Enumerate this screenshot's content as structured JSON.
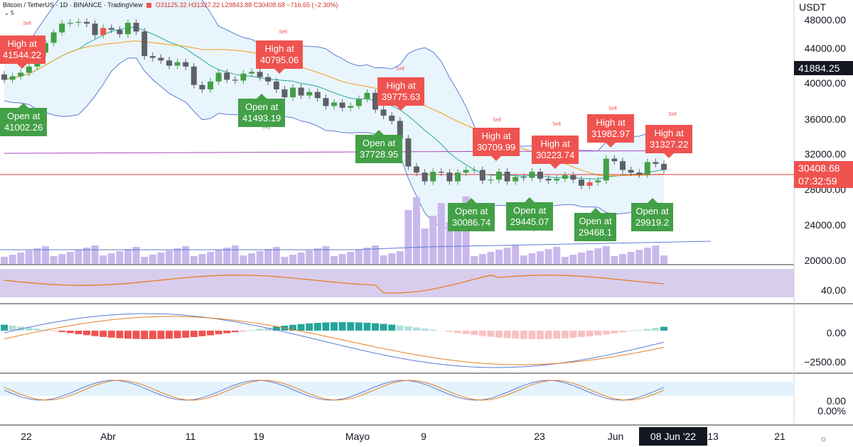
{
  "header": {
    "symbol_line": "Bitcoin / TetherUS · 1D · BINANCE · TradingView",
    "ohlc": "O31125.32 H31327.22 L29843.88 C30408.68 −716.65 (−2.30%)",
    "indicator_line": "5"
  },
  "currency": "USDT",
  "y_axis": [
    "48000.00",
    "44000.00",
    "40000.00",
    "36000.00",
    "32000.00",
    "28000.00",
    "24000.00",
    "20000.00"
  ],
  "pane_axis": {
    "rsi": "40.00",
    "macd_zero": "0.00",
    "macd_low": "−2500.00",
    "stoch": "0.00",
    "stoch_pct": "0.00%"
  },
  "price_tags": {
    "top": "41884.25",
    "current": "30408.68",
    "countdown": "07:32:59"
  },
  "x_axis": [
    {
      "label": "22",
      "x": 37
    },
    {
      "label": "Abr",
      "x": 152
    },
    {
      "label": "11",
      "x": 268
    },
    {
      "label": "19",
      "x": 364
    },
    {
      "label": "Mayo",
      "x": 503
    },
    {
      "label": "9",
      "x": 596
    },
    {
      "label": "23",
      "x": 759
    },
    {
      "label": "Jun",
      "x": 866
    },
    {
      "label": "13",
      "x": 1003
    },
    {
      "label": "21",
      "x": 1097
    }
  ],
  "date_badge": "08 Jun '22",
  "icons": {
    "settings": "gear-icon"
  },
  "colors": {
    "up": "#43a047",
    "down": "#ef5350",
    "rsi_bg": "#d1c4e9",
    "volume": "#c9b8ec",
    "bb": "#5b7bd5",
    "price_line": "#e53935"
  },
  "annotations": [
    {
      "kind": "high",
      "line1": "High at",
      "line2": "41544.22"
    },
    {
      "kind": "open",
      "line1": "Open at",
      "line2": "41002.26"
    },
    {
      "kind": "high",
      "line1": "High at",
      "line2": "40795.06"
    },
    {
      "kind": "open",
      "line1": "Open at",
      "line2": "41493.19"
    },
    {
      "kind": "high",
      "line1": "High at",
      "line2": "39775.63"
    },
    {
      "kind": "open",
      "line1": "Open at",
      "line2": "37728.95"
    },
    {
      "kind": "high",
      "line1": "High at",
      "line2": "30709.99"
    },
    {
      "kind": "open",
      "line1": "Open at",
      "line2": "30086.74"
    },
    {
      "kind": "high",
      "line1": "High at",
      "line2": "30223.74"
    },
    {
      "kind": "open",
      "line1": "Open at",
      "line2": "29445.07"
    },
    {
      "kind": "high",
      "line1": "High at",
      "line2": "31982.97"
    },
    {
      "kind": "open",
      "line1": "Open at",
      "line2": "29468.1"
    },
    {
      "kind": "high",
      "line1": "High at",
      "line2": "31327.22"
    },
    {
      "kind": "open",
      "line1": "Open at",
      "line2": "29919.2"
    }
  ],
  "signals": {
    "sell": "Sell",
    "buy": "Buy"
  },
  "chart_data": {
    "type": "candlestick",
    "ohlc_open": [
      41300,
      40700,
      41100,
      41500,
      42200,
      43800,
      44900,
      46100,
      47100,
      47200,
      47300,
      47100,
      45800,
      46600,
      46400,
      45900,
      47200,
      46200,
      43400,
      43200,
      42900,
      42300,
      42700,
      42200,
      40100,
      39600,
      40500,
      41500,
      40700,
      40600,
      41400,
      41600,
      41000,
      40500,
      39600,
      38700,
      39800,
      38900,
      39300,
      38600,
      37700,
      38100,
      37500,
      37700,
      38500,
      39200,
      37300,
      36600,
      36000,
      34000,
      30800,
      30100,
      29100,
      30200,
      30100,
      29100,
      30100,
      30400,
      30400,
      29200,
      29300,
      30200,
      29100,
      29600,
      29500,
      30200,
      29400,
      29200,
      29400,
      29800,
      29300,
      28600,
      29000,
      29200,
      31700,
      31400,
      30400,
      30100,
      29900,
      31300,
      31100
    ]
  }
}
